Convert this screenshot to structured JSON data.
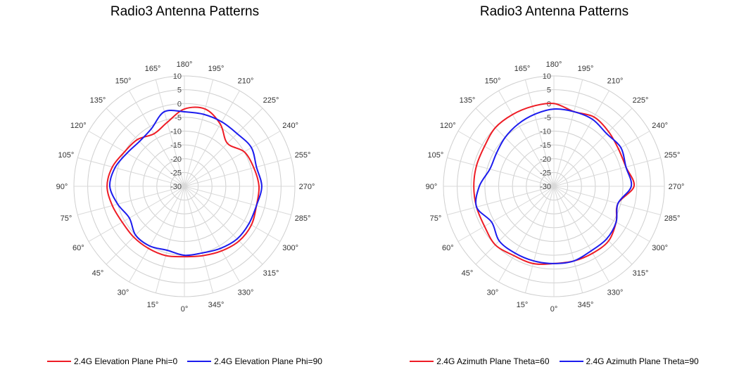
{
  "colors": {
    "red": "#ee1c25",
    "blue": "#1c1cee"
  },
  "chart_data": [
    {
      "type": "polar-line",
      "title": "Radio3 Antenna Patterns",
      "r_range": [
        -30,
        10
      ],
      "r_ticks": [
        10,
        5,
        0,
        -5,
        -10,
        -15,
        -20,
        -25,
        -30
      ],
      "theta_ticks": [
        "0°",
        "15°",
        "30°",
        "45°",
        "60°",
        "75°",
        "90°",
        "105°",
        "120°",
        "135°",
        "150°",
        "165°",
        "180°",
        "195°",
        "210°",
        "225°",
        "240°",
        "255°",
        "270°",
        "285°",
        "300°",
        "315°",
        "330°",
        "345°"
      ],
      "grid": true,
      "legend_position": "bottom",
      "series": [
        {
          "name": "2.4G Elevation Plane Phi=0",
          "color": "#ee1c25",
          "theta": [
            0,
            15,
            30,
            45,
            60,
            75,
            90,
            105,
            120,
            135,
            150,
            165,
            180,
            195,
            210,
            225,
            240,
            255,
            270,
            285,
            300,
            315,
            330,
            345,
            360
          ],
          "r": [
            -4.5,
            -4,
            -4,
            -4,
            -4,
            -3,
            -2,
            -3,
            -5,
            -6,
            -8,
            -6,
            -2,
            -1,
            -4,
            -8,
            -5,
            -4,
            -3,
            -3,
            -2,
            -2,
            -3,
            -4,
            -4.5
          ]
        },
        {
          "name": "2.4G Elevation Plane Phi=90",
          "color": "#1c1cee",
          "theta": [
            0,
            15,
            30,
            45,
            60,
            75,
            90,
            105,
            120,
            135,
            150,
            165,
            180,
            195,
            210,
            225,
            240,
            255,
            270,
            285,
            300,
            315,
            330,
            345,
            360
          ],
          "r": [
            -5,
            -6,
            -5,
            -5,
            -7,
            -5,
            -3,
            -4,
            -6,
            -7,
            -6,
            -2,
            -3,
            -3,
            -3,
            -3,
            -2,
            -3,
            -2,
            -3,
            -3,
            -3,
            -4,
            -5,
            -5
          ]
        }
      ]
    },
    {
      "type": "polar-line",
      "title": "Radio3 Antenna Patterns",
      "r_range": [
        -30,
        10
      ],
      "r_ticks": [
        10,
        5,
        0,
        -5,
        -10,
        -15,
        -20,
        -25,
        -30
      ],
      "theta_ticks": [
        "0°",
        "15°",
        "30°",
        "45°",
        "60°",
        "75°",
        "90°",
        "105°",
        "120°",
        "135°",
        "150°",
        "165°",
        "180°",
        "195°",
        "210°",
        "225°",
        "240°",
        "255°",
        "270°",
        "285°",
        "300°",
        "315°",
        "330°",
        "345°"
      ],
      "grid": true,
      "legend_position": "bottom",
      "series": [
        {
          "name": "2.4G Azimuth Plane Theta=60",
          "color": "#ee1c25",
          "theta": [
            0,
            15,
            30,
            45,
            60,
            75,
            90,
            105,
            120,
            135,
            150,
            165,
            180,
            195,
            210,
            225,
            240,
            255,
            270,
            285,
            300,
            315,
            330,
            345,
            360
          ],
          "r": [
            -2,
            -1,
            -1,
            0,
            -1,
            -1,
            -1,
            -1,
            -1,
            0,
            0,
            0,
            0,
            -2,
            -1,
            -2,
            -3,
            -3,
            -1,
            -6,
            -4,
            -2,
            -2,
            -2,
            -2
          ]
        },
        {
          "name": "2.4G Azimuth Plane Theta=90",
          "color": "#1c1cee",
          "theta": [
            0,
            15,
            30,
            45,
            60,
            75,
            90,
            105,
            120,
            135,
            150,
            165,
            180,
            195,
            210,
            225,
            240,
            255,
            270,
            285,
            300,
            315,
            330,
            345,
            360
          ],
          "r": [
            -2,
            -2,
            -2,
            -2,
            -4,
            -1,
            -3,
            -6,
            -6,
            -5,
            -4,
            -3,
            -2,
            -2,
            -2,
            -3,
            -2,
            -3,
            -2,
            -6,
            -4,
            -3,
            -3,
            -2,
            -2
          ]
        }
      ]
    }
  ]
}
